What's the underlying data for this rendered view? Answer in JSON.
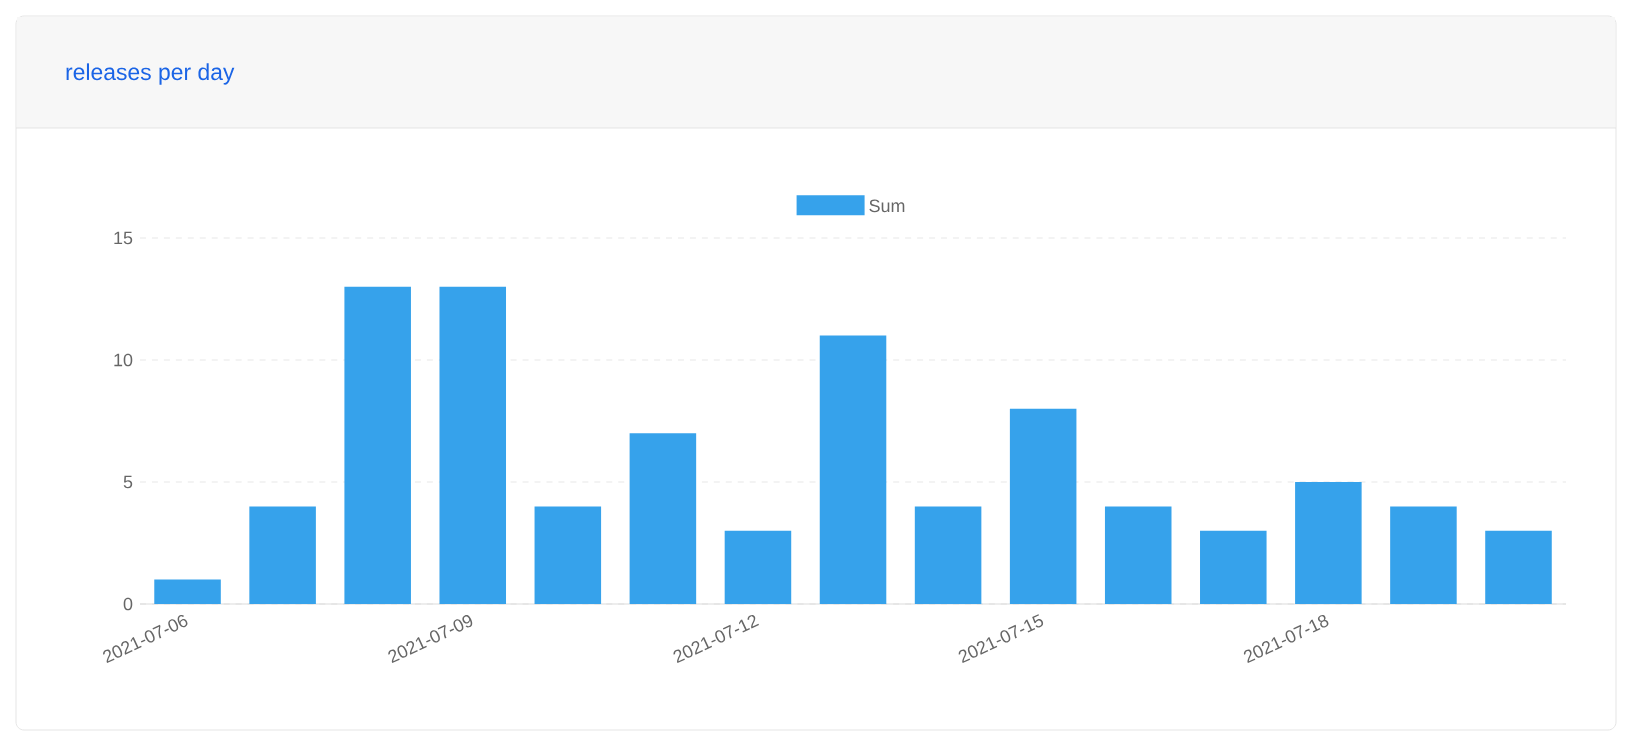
{
  "chart_data": {
    "type": "bar",
    "title": "releases per day",
    "categories": [
      "2021-07-06",
      null,
      null,
      "2021-07-09",
      null,
      null,
      "2021-07-12",
      null,
      null,
      "2021-07-15",
      null,
      null,
      "2021-07-18",
      null,
      null
    ],
    "series": [
      {
        "name": "Sum",
        "color": "#36a2eb",
        "values": [
          1,
          4,
          13,
          13,
          4,
          7,
          3,
          11,
          4,
          8,
          4,
          3,
          5,
          4,
          3
        ]
      }
    ],
    "ylim": [
      0,
      15
    ],
    "yticks": [
      0,
      5,
      10,
      15
    ],
    "grid": "y",
    "legend": "top"
  }
}
